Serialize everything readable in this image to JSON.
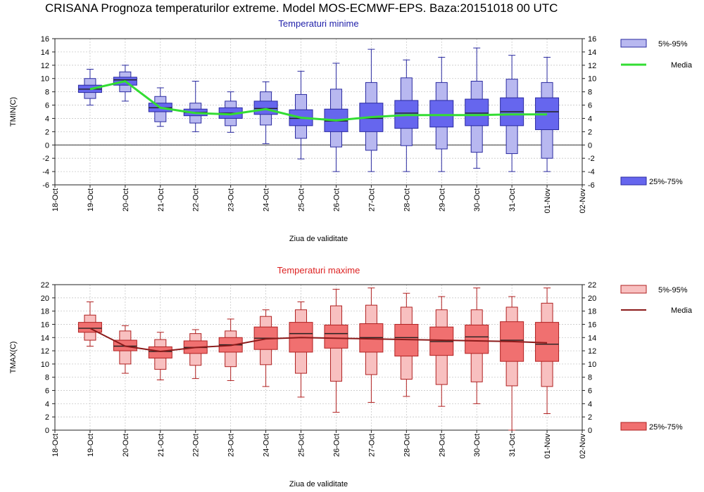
{
  "page_title": "CRISANA  Prognoza temperaturilor extreme.  Model MOS-ECMWF-EPS. Baza:20151018 00 UTC",
  "colors": {
    "tmin_box": "#6666ee",
    "tmin_whisker_box": "#b8b8f0",
    "tmin_stroke": "#2a2aa0",
    "tmin_media": "#33dd33",
    "tmin_title": "#2222aa",
    "tmax_box": "#f07070",
    "tmax_whisker_box": "#f8c0c0",
    "tmax_stroke": "#b02020",
    "tmax_media": "#8b1a1a",
    "tmax_title": "#dd2222"
  },
  "chart_data": [
    {
      "type": "boxplot",
      "title": "Temperaturi minime",
      "ylabel": "TMIN(C)",
      "xlabel": "Ziua de validitate",
      "ylim": [
        -6,
        16
      ],
      "yticks": [
        -6,
        -4,
        -2,
        0,
        2,
        4,
        6,
        8,
        10,
        12,
        14,
        16
      ],
      "x_ticks": [
        "18-Oct",
        "19-Oct",
        "20-Oct",
        "21-Oct",
        "22-Oct",
        "23-Oct",
        "24-Oct",
        "25-Oct",
        "26-Oct",
        "27-Oct",
        "28-Oct",
        "29-Oct",
        "30-Oct",
        "31-Oct",
        "01-Nov",
        "02-Nov"
      ],
      "grid": true,
      "zero_line": true,
      "legend": [
        {
          "label": "5%-95%",
          "placement": "top-right"
        },
        {
          "label": "Media",
          "placement": "top-right"
        },
        {
          "label": "25%-75%",
          "placement": "bottom-right"
        }
      ],
      "boxes": [
        {
          "x": "19-Oct",
          "min": 6.0,
          "p5": 7.0,
          "p25": 7.9,
          "median": 8.4,
          "p75": 9.0,
          "p95": 10.0,
          "max": 11.4
        },
        {
          "x": "20-Oct",
          "min": 6.6,
          "p5": 8.0,
          "p25": 9.0,
          "median": 9.8,
          "p75": 10.2,
          "p95": 11.0,
          "max": 12.0
        },
        {
          "x": "21-Oct",
          "min": 2.8,
          "p5": 3.5,
          "p25": 5.0,
          "median": 5.6,
          "p75": 6.3,
          "p95": 7.3,
          "max": 8.6
        },
        {
          "x": "22-Oct",
          "min": 2.0,
          "p5": 3.3,
          "p25": 4.4,
          "median": 4.9,
          "p75": 5.4,
          "p95": 6.3,
          "max": 9.6
        },
        {
          "x": "23-Oct",
          "min": 1.9,
          "p5": 2.9,
          "p25": 4.0,
          "median": 4.8,
          "p75": 5.6,
          "p95": 6.6,
          "max": 8.0
        },
        {
          "x": "24-Oct",
          "min": 0.2,
          "p5": 3.0,
          "p25": 4.6,
          "median": 5.5,
          "p75": 6.6,
          "p95": 8.0,
          "max": 9.5
        },
        {
          "x": "25-Oct",
          "min": -2.1,
          "p5": 1.0,
          "p25": 2.9,
          "median": 4.0,
          "p75": 5.3,
          "p95": 7.6,
          "max": 11.1
        },
        {
          "x": "26-Oct",
          "min": -4.0,
          "p5": -0.3,
          "p25": 2.0,
          "median": 3.6,
          "p75": 5.4,
          "p95": 8.4,
          "max": 12.3
        },
        {
          "x": "27-Oct",
          "min": -4.0,
          "p5": -0.8,
          "p25": 2.0,
          "median": 4.0,
          "p75": 6.3,
          "p95": 9.4,
          "max": 14.4
        },
        {
          "x": "28-Oct",
          "min": -4.0,
          "p5": -0.1,
          "p25": 2.5,
          "median": 4.8,
          "p75": 6.7,
          "p95": 10.1,
          "max": 12.8
        },
        {
          "x": "29-Oct",
          "min": -4.0,
          "p5": -0.6,
          "p25": 2.7,
          "median": 4.5,
          "p75": 6.7,
          "p95": 9.4,
          "max": 13.2
        },
        {
          "x": "30-Oct",
          "min": -3.5,
          "p5": -1.1,
          "p25": 2.9,
          "median": 4.8,
          "p75": 6.9,
          "p95": 9.6,
          "max": 14.6
        },
        {
          "x": "31-Oct",
          "min": -4.0,
          "p5": -1.3,
          "p25": 2.9,
          "median": 5.0,
          "p75": 7.1,
          "p95": 9.9,
          "max": 13.5
        },
        {
          "x": "01-Nov",
          "min": -4.0,
          "p5": -2.0,
          "p25": 2.3,
          "median": 5.0,
          "p75": 7.1,
          "p95": 9.4,
          "max": 13.2
        }
      ],
      "media": [
        {
          "x": "19-Oct",
          "y": 8.4
        },
        {
          "x": "20-Oct",
          "y": 9.6
        },
        {
          "x": "21-Oct",
          "y": 5.6
        },
        {
          "x": "22-Oct",
          "y": 4.8
        },
        {
          "x": "23-Oct",
          "y": 4.6
        },
        {
          "x": "24-Oct",
          "y": 5.4
        },
        {
          "x": "25-Oct",
          "y": 4.1
        },
        {
          "x": "26-Oct",
          "y": 3.7
        },
        {
          "x": "27-Oct",
          "y": 4.2
        },
        {
          "x": "28-Oct",
          "y": 4.5
        },
        {
          "x": "29-Oct",
          "y": 4.5
        },
        {
          "x": "30-Oct",
          "y": 4.5
        },
        {
          "x": "31-Oct",
          "y": 4.6
        },
        {
          "x": "01-Nov",
          "y": 4.6
        }
      ]
    },
    {
      "type": "boxplot",
      "title": "Temperaturi maxime",
      "ylabel": "TMAX(C)",
      "xlabel": "Ziua de validitate",
      "ylim": [
        0,
        22
      ],
      "yticks": [
        0,
        2,
        4,
        6,
        8,
        10,
        12,
        14,
        16,
        18,
        20,
        22
      ],
      "x_ticks": [
        "18-Oct",
        "19-Oct",
        "20-Oct",
        "21-Oct",
        "22-Oct",
        "23-Oct",
        "24-Oct",
        "25-Oct",
        "26-Oct",
        "27-Oct",
        "28-Oct",
        "29-Oct",
        "30-Oct",
        "31-Oct",
        "01-Nov",
        "02-Nov"
      ],
      "grid": true,
      "zero_line": false,
      "legend": [
        {
          "label": "5%-95%",
          "placement": "top-right"
        },
        {
          "label": "Media",
          "placement": "top-right"
        },
        {
          "label": "25%-75%",
          "placement": "bottom-right"
        }
      ],
      "boxes": [
        {
          "x": "19-Oct",
          "min": 12.7,
          "p5": 13.6,
          "p25": 14.8,
          "median": 15.4,
          "p75": 16.3,
          "p95": 17.4,
          "max": 19.4
        },
        {
          "x": "20-Oct",
          "min": 8.6,
          "p5": 10.0,
          "p25": 12.0,
          "median": 12.7,
          "p75": 13.6,
          "p95": 15.0,
          "max": 15.8
        },
        {
          "x": "21-Oct",
          "min": 7.6,
          "p5": 9.2,
          "p25": 10.9,
          "median": 11.9,
          "p75": 12.6,
          "p95": 13.7,
          "max": 14.8
        },
        {
          "x": "22-Oct",
          "min": 7.8,
          "p5": 9.8,
          "p25": 11.6,
          "median": 12.5,
          "p75": 13.5,
          "p95": 14.6,
          "max": 15.2
        },
        {
          "x": "23-Oct",
          "min": 7.5,
          "p5": 9.6,
          "p25": 11.8,
          "median": 12.9,
          "p75": 14.0,
          "p95": 15.0,
          "max": 16.8
        },
        {
          "x": "24-Oct",
          "min": 6.6,
          "p5": 9.9,
          "p25": 12.2,
          "median": 13.9,
          "p75": 15.6,
          "p95": 17.2,
          "max": 18.2
        },
        {
          "x": "25-Oct",
          "min": 5.0,
          "p5": 8.6,
          "p25": 11.8,
          "median": 14.6,
          "p75": 16.3,
          "p95": 18.2,
          "max": 19.4
        },
        {
          "x": "26-Oct",
          "min": 2.7,
          "p5": 7.4,
          "p25": 12.4,
          "median": 14.6,
          "p75": 15.9,
          "p95": 18.8,
          "max": 21.3
        },
        {
          "x": "27-Oct",
          "min": 4.2,
          "p5": 8.4,
          "p25": 11.8,
          "median": 14.0,
          "p75": 16.1,
          "p95": 18.9,
          "max": 21.5
        },
        {
          "x": "28-Oct",
          "min": 5.1,
          "p5": 7.7,
          "p25": 11.2,
          "median": 14.0,
          "p75": 16.0,
          "p95": 18.6,
          "max": 20.7
        },
        {
          "x": "29-Oct",
          "min": 3.6,
          "p5": 6.9,
          "p25": 11.3,
          "median": 13.4,
          "p75": 15.6,
          "p95": 18.2,
          "max": 20.2
        },
        {
          "x": "30-Oct",
          "min": 4.0,
          "p5": 7.3,
          "p25": 11.6,
          "median": 14.1,
          "p75": 15.9,
          "p95": 18.2,
          "max": 21.5
        },
        {
          "x": "31-Oct",
          "min": 0.0,
          "p5": 6.7,
          "p25": 10.4,
          "median": 13.6,
          "p75": 16.4,
          "p95": 18.6,
          "max": 20.2
        },
        {
          "x": "01-Nov",
          "min": 2.5,
          "p5": 6.6,
          "p25": 10.4,
          "median": 13.0,
          "p75": 16.3,
          "p95": 19.2,
          "max": 21.5
        }
      ],
      "media": [
        {
          "x": "19-Oct",
          "y": 15.4
        },
        {
          "x": "20-Oct",
          "y": 12.7
        },
        {
          "x": "21-Oct",
          "y": 11.9
        },
        {
          "x": "22-Oct",
          "y": 12.5
        },
        {
          "x": "23-Oct",
          "y": 12.8
        },
        {
          "x": "24-Oct",
          "y": 13.8
        },
        {
          "x": "25-Oct",
          "y": 14.0
        },
        {
          "x": "26-Oct",
          "y": 13.9
        },
        {
          "x": "27-Oct",
          "y": 13.8
        },
        {
          "x": "28-Oct",
          "y": 13.7
        },
        {
          "x": "29-Oct",
          "y": 13.6
        },
        {
          "x": "30-Oct",
          "y": 13.5
        },
        {
          "x": "31-Oct",
          "y": 13.4
        },
        {
          "x": "01-Nov",
          "y": 13.2
        }
      ]
    }
  ]
}
